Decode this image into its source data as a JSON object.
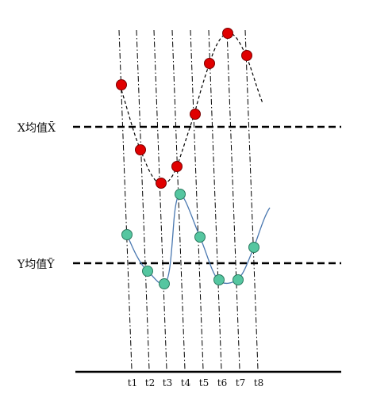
{
  "labels": {
    "x_mean": "X均值X̄",
    "y_mean": "Y均值Ȳ"
  },
  "ticks": [
    "t1",
    "t2",
    "t3",
    "t4",
    "t5",
    "t6",
    "t7",
    "t8"
  ],
  "colors": {
    "x_point": "#e00000",
    "y_point": "#55c6a0",
    "y_curve": "#4a78b0",
    "line": "#000000"
  }
}
